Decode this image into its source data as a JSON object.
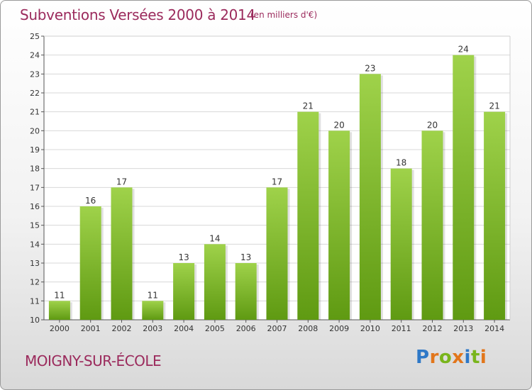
{
  "header": {
    "title": "Subventions Versées 2000 à 2014",
    "unit": "(en milliers d'€)"
  },
  "footer": {
    "commune": "MOIGNY-SUR-ÉCOLE",
    "logo": "Proxiti"
  },
  "colors": {
    "title": "#9b2a5c",
    "bar_light": "#9fd24a",
    "bar_dark": "#5f9a12",
    "logo_letters": [
      "#2e78c7",
      "#e2761b",
      "#79b51c",
      "#e2761b",
      "#2e78c7",
      "#79b51c",
      "#e2761b"
    ]
  },
  "chart_data": {
    "type": "bar",
    "title": "Subventions Versées 2000 à 2014",
    "subtitle": "(en milliers d'€)",
    "xlabel": "",
    "ylabel": "",
    "categories": [
      "2000",
      "2001",
      "2002",
      "2003",
      "2004",
      "2005",
      "2006",
      "2007",
      "2008",
      "2009",
      "2010",
      "2011",
      "2012",
      "2013",
      "2014"
    ],
    "values": [
      11,
      16,
      17,
      11,
      13,
      14,
      13,
      17,
      21,
      20,
      23,
      18,
      20,
      24,
      21
    ],
    "ylim": [
      10,
      25
    ],
    "yticks": [
      10,
      11,
      12,
      13,
      14,
      15,
      16,
      17,
      18,
      19,
      20,
      21,
      22,
      23,
      24,
      25
    ],
    "grid": true,
    "data_labels": true,
    "legend": "none"
  }
}
